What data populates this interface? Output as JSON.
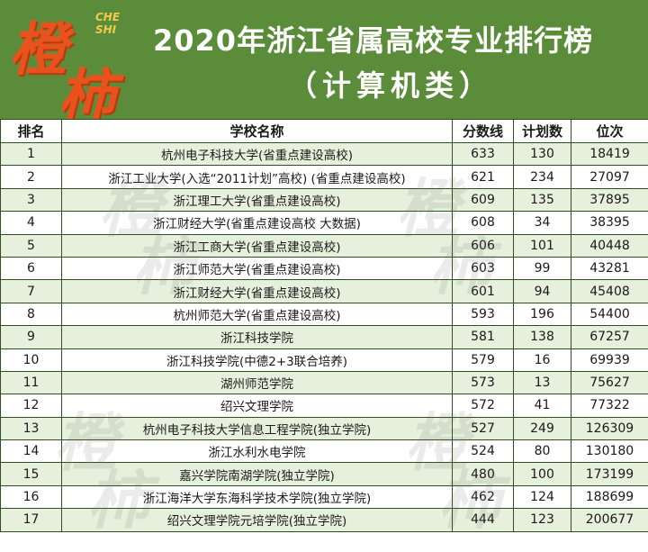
{
  "header": {
    "logo_text_1": "橙",
    "logo_text_2": "柿",
    "logo_small": "CHE SHI",
    "title_line1": "2020年浙江省属高校专业排行榜",
    "title_line2": "（计算机类）"
  },
  "colors": {
    "header_green": "#5a8c3a",
    "row_tint": "#e6f0dc",
    "logo_orange": "#e8531d"
  },
  "table": {
    "columns": [
      "排名",
      "学校名称",
      "分数线",
      "计划数",
      "位次"
    ],
    "rows": [
      [
        "1",
        "杭州电子科技大学(省重点建设高校)",
        "633",
        "130",
        "18419"
      ],
      [
        "2",
        "浙江工业大学(入选“2011计划”高校) (省重点建设高校)",
        "621",
        "234",
        "27097"
      ],
      [
        "3",
        "浙江理工大学(省重点建设高校)",
        "609",
        "135",
        "37895"
      ],
      [
        "4",
        "浙江财经大学(省重点建设高校  大数据)",
        "608",
        "34",
        "38395"
      ],
      [
        "5",
        "浙江工商大学(省重点建设高校)",
        "606",
        "101",
        "40448"
      ],
      [
        "6",
        "浙江师范大学(省重点建设高校)",
        "603",
        "99",
        "43281"
      ],
      [
        "7",
        "浙江财经大学(省重点建设高校)",
        "601",
        "94",
        "45408"
      ],
      [
        "8",
        "杭州师范大学(省重点建设高校)",
        "593",
        "196",
        "54400"
      ],
      [
        "9",
        "浙江科技学院",
        "581",
        "138",
        "67257"
      ],
      [
        "10",
        "浙江科技学院(中德2+3联合培养)",
        "579",
        "16",
        "69939"
      ],
      [
        "11",
        "湖州师范学院",
        "573",
        "13",
        "75627"
      ],
      [
        "12",
        "绍兴文理学院",
        "572",
        "41",
        "77322"
      ],
      [
        "13",
        "杭州电子科技大学信息工程学院(独立学院)",
        "527",
        "249",
        "126309"
      ],
      [
        "14",
        "浙江水利水电学院",
        "524",
        "80",
        "130180"
      ],
      [
        "15",
        "嘉兴学院南湖学院(独立学院)",
        "480",
        "100",
        "173199"
      ],
      [
        "16",
        "浙江海洋大学东海科学技术学院(独立学院)",
        "462",
        "124",
        "188699"
      ],
      [
        "17",
        "绍兴文理学院元培学院(独立学院)",
        "444",
        "123",
        "200677"
      ]
    ]
  }
}
